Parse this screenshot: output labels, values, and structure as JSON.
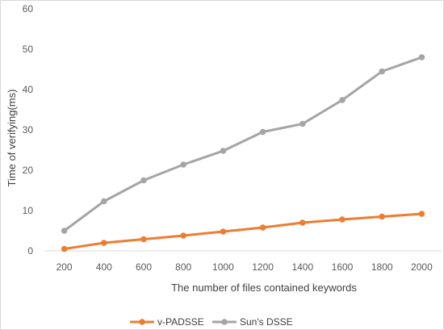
{
  "chart_data": {
    "type": "line",
    "categories": [
      "200",
      "400",
      "600",
      "800",
      "1000",
      "1200",
      "1400",
      "1600",
      "1800",
      "2000"
    ],
    "series": [
      {
        "name": "v-PADSSE",
        "color": "#ed7d31",
        "values": [
          0.5,
          2.0,
          2.9,
          3.8,
          4.8,
          5.8,
          7.0,
          7.8,
          8.5,
          9.2
        ]
      },
      {
        "name": "Sun's DSSE",
        "color": "#a5a5a5",
        "values": [
          5.0,
          12.3,
          17.5,
          21.4,
          24.8,
          29.5,
          31.5,
          37.4,
          44.5,
          48.0
        ]
      }
    ],
    "title": "",
    "xlabel": "The number of files contained  keywords",
    "ylabel": "Time of verifying(ms)",
    "ylim": [
      0,
      60
    ],
    "yticks": [
      "0",
      "10",
      "20",
      "30",
      "40",
      "50",
      "60"
    ],
    "grid": false,
    "legend": "bottom",
    "axis_color": "#d9d9d9"
  }
}
